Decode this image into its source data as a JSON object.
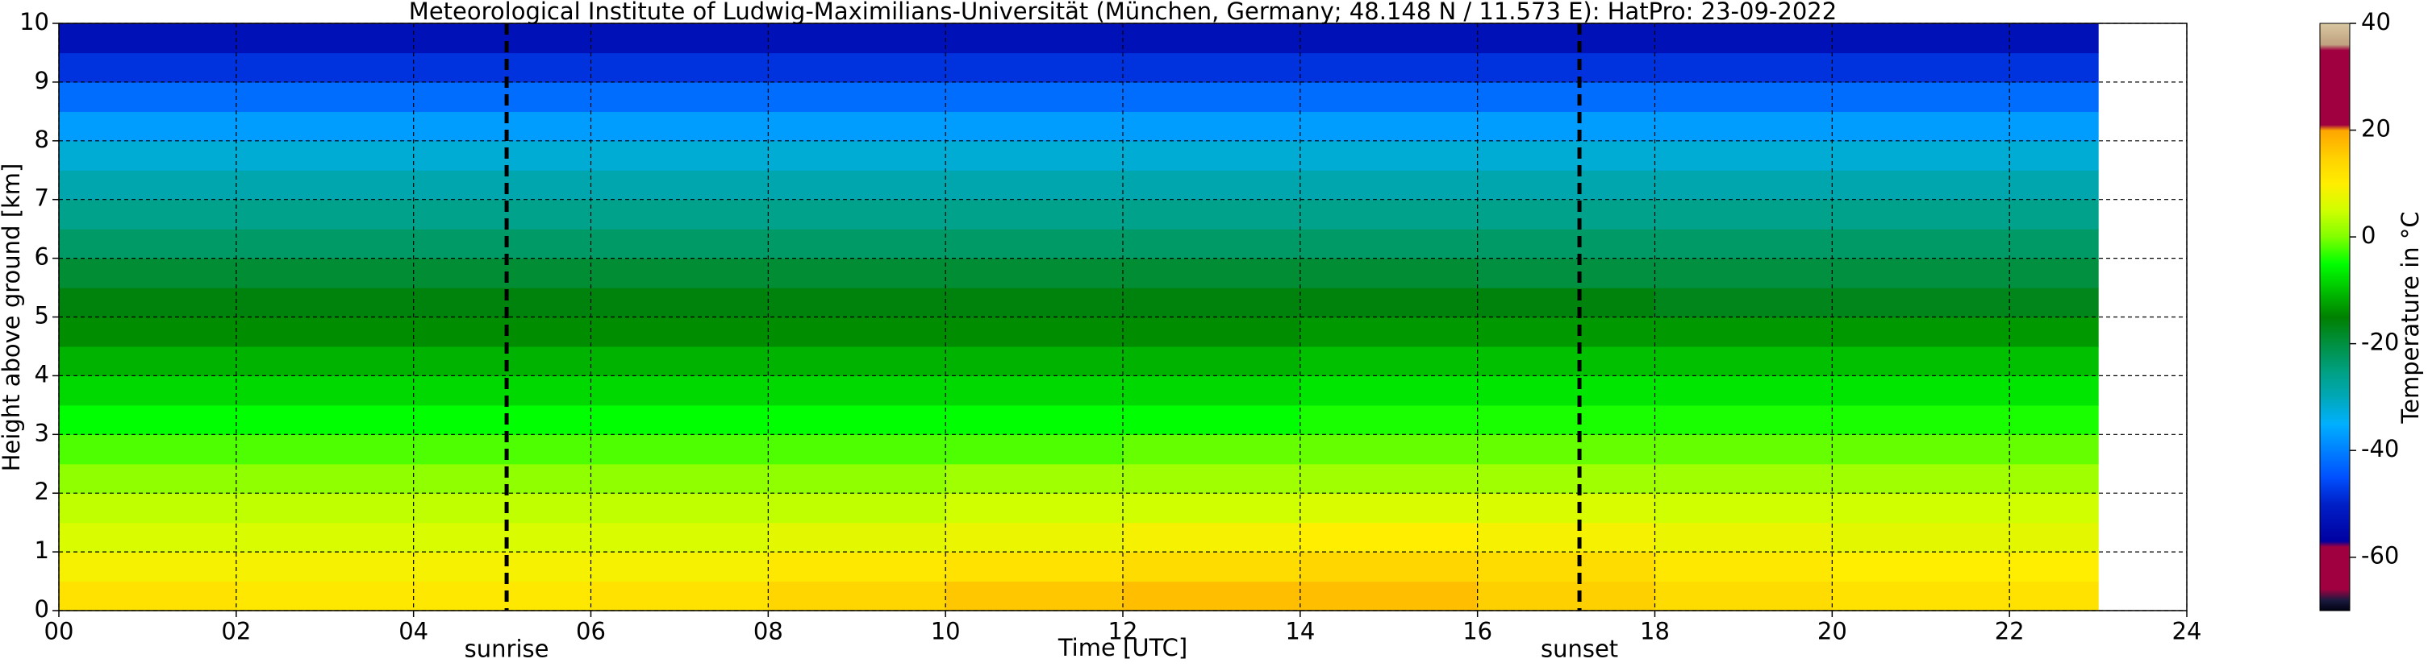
{
  "chart_data": {
    "type": "heatmap",
    "title": "Meteorological Institute of Ludwig-Maximilians-Universität (München, Germany; 48.148 N / 11.573 E):    HatPro: 23-09-2022",
    "x_label": "Time [UTC]",
    "y_label": "Height above ground [km]",
    "colorbar_label": "Temperature in °C",
    "x_bins": [
      0,
      2,
      4,
      6,
      8,
      10,
      12,
      14,
      16,
      18,
      20,
      22,
      23
    ],
    "y_bins": [
      0,
      0.5,
      1,
      1.5,
      2,
      2.5,
      3,
      3.5,
      4,
      4.5,
      5,
      5.5,
      6,
      6.5,
      7,
      7.5,
      8,
      8.5,
      9,
      9.5,
      10
    ],
    "values": [
      [
        12,
        11,
        11,
        12,
        14,
        16,
        17,
        17,
        15,
        13,
        12,
        12
      ],
      [
        9,
        9,
        9,
        9,
        11,
        12,
        13,
        14,
        13,
        11,
        10,
        10
      ],
      [
        6,
        6,
        6,
        6,
        7,
        8,
        9,
        10,
        9,
        8,
        7,
        7
      ],
      [
        4,
        4,
        4,
        4,
        4,
        5,
        5,
        6,
        6,
        5,
        5,
        5
      ],
      [
        1,
        1,
        1,
        1,
        1,
        2,
        2,
        2,
        2,
        2,
        2,
        2
      ],
      [
        -2,
        -2,
        -2,
        -2,
        -2,
        -2,
        -1,
        -1,
        -1,
        -1,
        -1,
        -1
      ],
      [
        -5,
        -5,
        -5,
        -5,
        -5,
        -5,
        -5,
        -4,
        -4,
        -4,
        -4,
        -4
      ],
      [
        -8,
        -8,
        -8,
        -8,
        -8,
        -8,
        -8,
        -7,
        -7,
        -7,
        -7,
        -7
      ],
      [
        -11,
        -11,
        -11,
        -11,
        -11,
        -11,
        -11,
        -10,
        -10,
        -10,
        -10,
        -10
      ],
      [
        -14,
        -14,
        -14,
        -14,
        -14,
        -14,
        -14,
        -13,
        -13,
        -13,
        -13,
        -13
      ],
      [
        -16,
        -16,
        -16,
        -16,
        -16,
        -16,
        -16,
        -16,
        -16,
        -17,
        -17,
        -17
      ],
      [
        -19,
        -19,
        -19,
        -19,
        -19,
        -19,
        -19,
        -19,
        -20,
        -20,
        -20,
        -20
      ],
      [
        -23,
        -23,
        -23,
        -23,
        -23,
        -23,
        -23,
        -23,
        -23,
        -23,
        -23,
        -23
      ],
      [
        -26,
        -26,
        -26,
        -26,
        -26,
        -26,
        -26,
        -26,
        -26,
        -26,
        -26,
        -26
      ],
      [
        -29,
        -29,
        -29,
        -29,
        -29,
        -29,
        -29,
        -29,
        -29,
        -29,
        -29,
        -29
      ],
      [
        -32,
        -32,
        -32,
        -32,
        -32,
        -32,
        -32,
        -32,
        -32,
        -32,
        -32,
        -32
      ],
      [
        -37,
        -37,
        -37,
        -37,
        -37,
        -37,
        -37,
        -37,
        -37,
        -37,
        -37,
        -37
      ],
      [
        -42,
        -42,
        -42,
        -42,
        -42,
        -42,
        -42,
        -42,
        -42,
        -42,
        -42,
        -42
      ],
      [
        -48,
        -48,
        -48,
        -48,
        -48,
        -48,
        -48,
        -48,
        -48,
        -48,
        -48,
        -48
      ],
      [
        -53,
        -53,
        -53,
        -53,
        -53,
        -53,
        -53,
        -53,
        -53,
        -53,
        -53,
        -53
      ]
    ],
    "xlim": [
      0,
      24
    ],
    "ylim": [
      0,
      10
    ],
    "xticks": [
      {
        "value": 0,
        "label": "00"
      },
      {
        "value": 2,
        "label": "02"
      },
      {
        "value": 4,
        "label": "04"
      },
      {
        "value": 6,
        "label": "06"
      },
      {
        "value": 8,
        "label": "08"
      },
      {
        "value": 10,
        "label": "10"
      },
      {
        "value": 12,
        "label": "12"
      },
      {
        "value": 14,
        "label": "14"
      },
      {
        "value": 16,
        "label": "16"
      },
      {
        "value": 18,
        "label": "18"
      },
      {
        "value": 20,
        "label": "20"
      },
      {
        "value": 22,
        "label": "22"
      },
      {
        "value": 24,
        "label": "24"
      }
    ],
    "yticks": [
      0,
      1,
      2,
      3,
      4,
      5,
      6,
      7,
      8,
      9,
      10
    ],
    "grid": true,
    "clim": [
      -70,
      40
    ],
    "cticks": [
      -60,
      -40,
      -20,
      0,
      20,
      40
    ],
    "colorscale": [
      {
        "value": -70,
        "color": "#000010"
      },
      {
        "value": -68,
        "color": "#1a1a40"
      },
      {
        "value": -66,
        "color": "#a00040"
      },
      {
        "value": -58,
        "color": "#a00040"
      },
      {
        "value": -57,
        "color": "#0000a0"
      },
      {
        "value": -50,
        "color": "#0020c8"
      },
      {
        "value": -45,
        "color": "#0050ff"
      },
      {
        "value": -40,
        "color": "#0080ff"
      },
      {
        "value": -35,
        "color": "#00b0ff"
      },
      {
        "value": -30,
        "color": "#00a8b8"
      },
      {
        "value": -25,
        "color": "#00a080"
      },
      {
        "value": -20,
        "color": "#009040"
      },
      {
        "value": -15,
        "color": "#008000"
      },
      {
        "value": -10,
        "color": "#00c000"
      },
      {
        "value": -5,
        "color": "#00ff00"
      },
      {
        "value": 0,
        "color": "#80ff00"
      },
      {
        "value": 5,
        "color": "#d0ff00"
      },
      {
        "value": 10,
        "color": "#ffee00"
      },
      {
        "value": 15,
        "color": "#ffd000"
      },
      {
        "value": 20,
        "color": "#ffa500"
      },
      {
        "value": 21,
        "color": "#a00040"
      },
      {
        "value": 35,
        "color": "#a00040"
      },
      {
        "value": 36,
        "color": "#c0a080"
      },
      {
        "value": 40,
        "color": "#d8c8a0"
      }
    ],
    "annotations": [
      {
        "label": "sunrise",
        "x": 5.05
      },
      {
        "label": "sunset",
        "x": 17.15
      }
    ]
  }
}
